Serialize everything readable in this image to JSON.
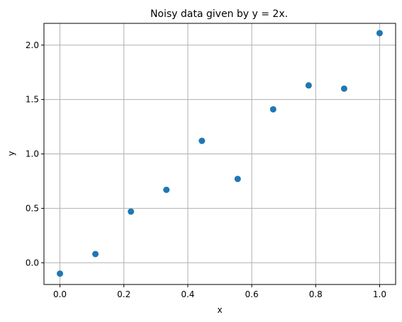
{
  "chart_data": {
    "type": "scatter",
    "title": "Noisy data given by y = 2x.",
    "xlabel": "x",
    "ylabel": "y",
    "xlim": [
      -0.05,
      1.05
    ],
    "ylim": [
      -0.2,
      2.2
    ],
    "xticks": [
      0.0,
      0.2,
      0.4,
      0.6,
      0.8,
      1.0
    ],
    "xtick_labels": [
      "0.0",
      "0.2",
      "0.4",
      "0.6",
      "0.8",
      "1.0"
    ],
    "yticks": [
      0.0,
      0.5,
      1.0,
      1.5,
      2.0
    ],
    "ytick_labels": [
      "0.0",
      "0.5",
      "1.0",
      "1.5",
      "2.0"
    ],
    "grid": true,
    "color": "#1f77b4",
    "x": [
      0.0,
      0.111,
      0.222,
      0.333,
      0.444,
      0.556,
      0.667,
      0.778,
      0.889,
      1.0
    ],
    "y": [
      -0.1,
      0.08,
      0.47,
      0.67,
      1.12,
      0.77,
      1.41,
      1.63,
      1.6,
      2.11
    ]
  }
}
